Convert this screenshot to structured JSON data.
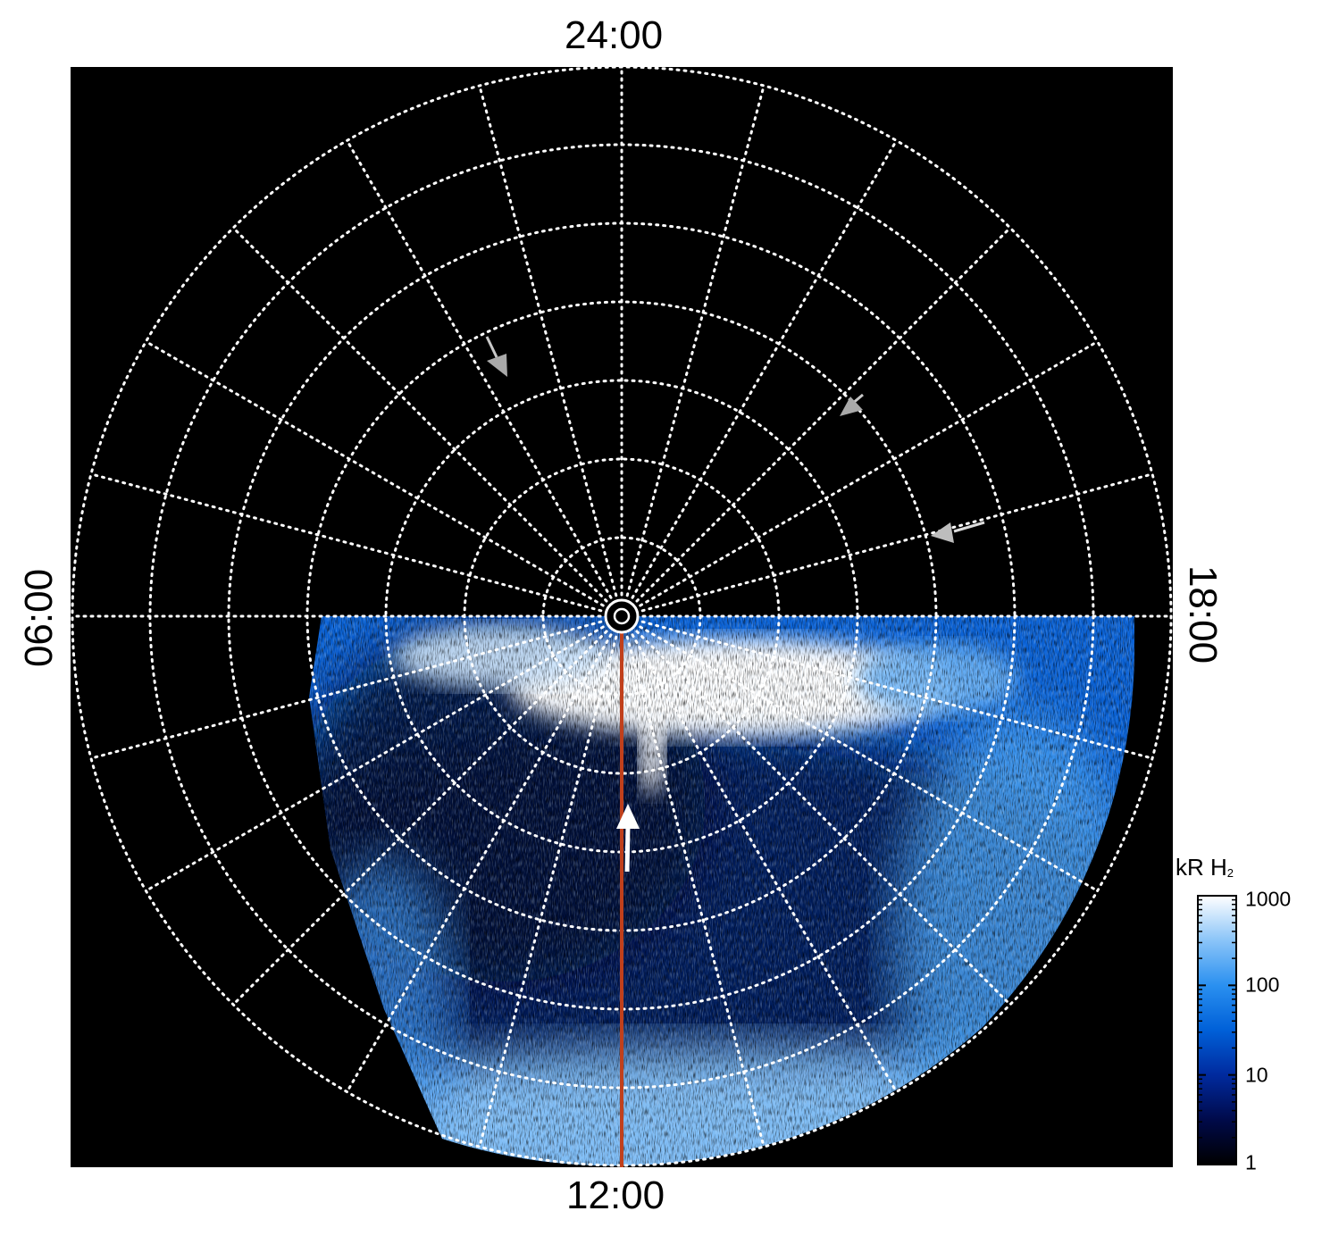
{
  "local_time_labels": {
    "top": "24:00",
    "bottom": "12:00",
    "left": "06:00",
    "right": "18:00"
  },
  "colorbar": {
    "title": "kR H",
    "title_subscript": "2",
    "ticks": [
      {
        "label": "1000",
        "value": 1000
      },
      {
        "label": "100",
        "value": 100
      },
      {
        "label": "10",
        "value": 10
      },
      {
        "label": "1",
        "value": 1
      }
    ],
    "scale": "log",
    "range": [
      1,
      1000
    ],
    "colors": [
      "#000000",
      "#000a4a",
      "#002a9e",
      "#0060d8",
      "#2a90f0",
      "#8ac4f8",
      "#ffffff"
    ]
  },
  "grid": {
    "circles": 7,
    "meridians": 24,
    "style": "dotted",
    "color": "#ffffff"
  },
  "colors": {
    "background": "#000000",
    "meridian_line": "#c0401c",
    "arrow_white": "#ffffff",
    "arrow_gray": "#a9a9a9"
  }
}
